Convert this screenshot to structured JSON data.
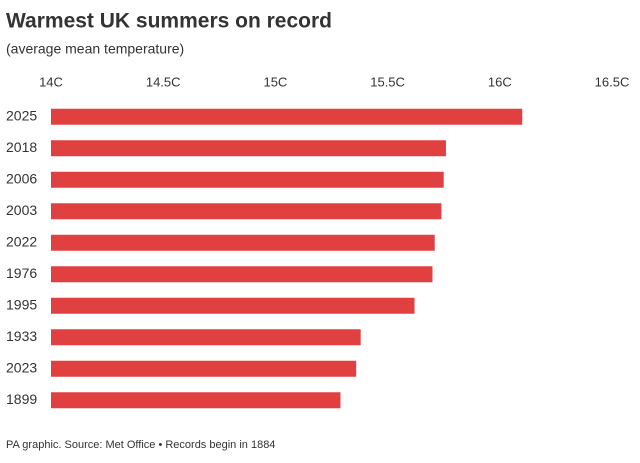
{
  "chart_data": {
    "type": "barh",
    "title": "Warmest UK summers on record",
    "subtitle": "(average mean temperature)",
    "source": "PA graphic. Source: Met Office • Records begin in 1884",
    "categories": [
      "2025",
      "2018",
      "2006",
      "2003",
      "2022",
      "1976",
      "1995",
      "1933",
      "2023",
      "1899"
    ],
    "values": [
      16.1,
      15.76,
      15.75,
      15.74,
      15.71,
      15.7,
      15.62,
      15.38,
      15.36,
      15.29
    ],
    "color": "#e04040",
    "xlim": [
      14,
      16.5
    ],
    "xticks": [
      {
        "value": 14,
        "label": "14C"
      },
      {
        "value": 14.5,
        "label": "14.5C"
      },
      {
        "value": 15,
        "label": "15C"
      },
      {
        "value": 15.5,
        "label": "15.5C"
      },
      {
        "value": 16,
        "label": "16C"
      },
      {
        "value": 16.5,
        "label": "16.5C"
      }
    ],
    "grid": false
  }
}
